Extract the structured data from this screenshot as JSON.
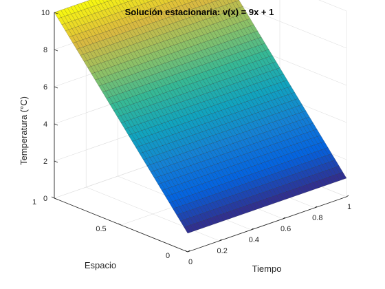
{
  "chart_data": {
    "type": "surface",
    "title": "Solución estacionaria: v(x) = 9x + 1",
    "xlabel": "Espacio",
    "ylabel": "Tiempo",
    "zlabel": "Temperatura (°C)",
    "x_ticks": [
      "0",
      "0.5",
      "1"
    ],
    "y_ticks": [
      "0",
      "0.2",
      "0.4",
      "0.6",
      "0.8",
      "1"
    ],
    "z_ticks": [
      "0",
      "2",
      "4",
      "6",
      "8",
      "10"
    ],
    "xlim": [
      0,
      1
    ],
    "ylim": [
      0,
      1
    ],
    "zlim": [
      0,
      10
    ],
    "function": {
      "slope": 9,
      "intercept": 1
    },
    "colormap": "parula",
    "grid": true,
    "mesh_edges": true
  }
}
